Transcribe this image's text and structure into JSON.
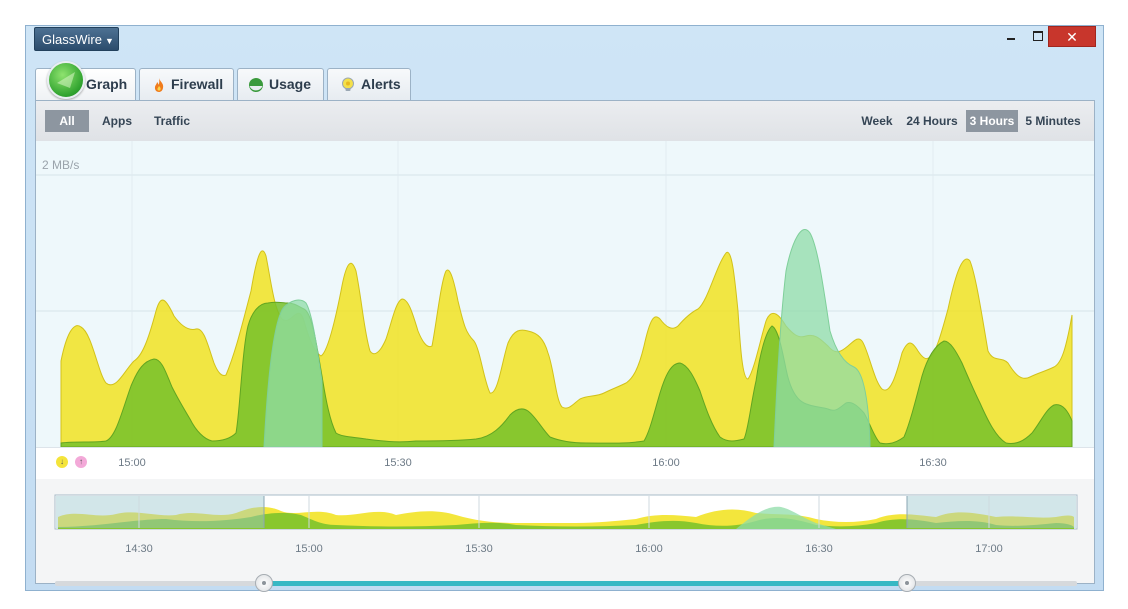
{
  "app": {
    "menu_label": "GlassWire",
    "close_glyph": "✕"
  },
  "tabs": [
    {
      "label": "Graph",
      "icon": "graph-logo-icon",
      "active": true
    },
    {
      "label": "Firewall",
      "icon": "flame-icon",
      "active": false
    },
    {
      "label": "Usage",
      "icon": "usage-pie-icon",
      "active": false
    },
    {
      "label": "Alerts",
      "icon": "alert-bulb-icon",
      "active": false
    }
  ],
  "filters": {
    "all": "All",
    "apps": "Apps",
    "traffic": "Traffic"
  },
  "ranges": {
    "week": "Week",
    "hours24": "24 Hours",
    "hours3": "3 Hours",
    "minutes5": "5 Minutes",
    "selected": "3 Hours"
  },
  "graph": {
    "ylabel": "2 MB/s",
    "xticks": [
      "15:00",
      "15:30",
      "16:00",
      "16:30"
    ],
    "legend": {
      "incoming_glyph": "↓",
      "outgoing_glyph": "↑"
    },
    "colors": {
      "incoming": "#f1e21a",
      "outgoing": "#7cc42a",
      "outgoing_peak": "#8fdca8"
    }
  },
  "overview": {
    "ticks": [
      "14:30",
      "15:00",
      "15:30",
      "16:00",
      "16:30",
      "17:00"
    ],
    "selection_start_fraction": 0.244,
    "selection_end_fraction": 0.89
  }
}
